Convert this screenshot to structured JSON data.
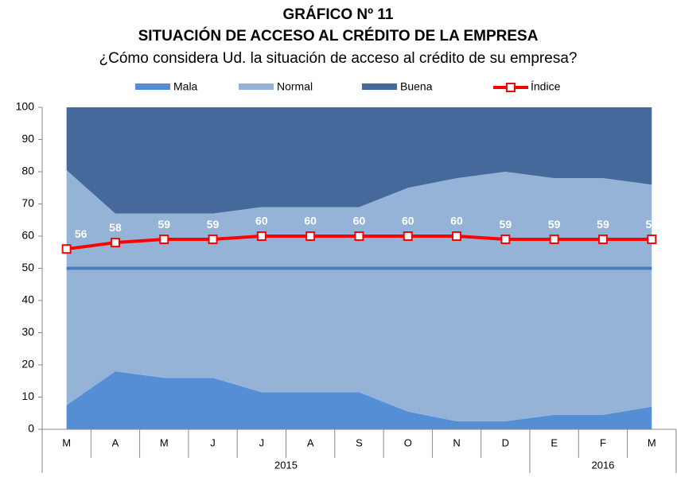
{
  "chart_data": {
    "type": "stacked-area-line",
    "title": "GRÁFICO Nº 11",
    "subtitle": "SITUACIÓN DE ACCESO AL CRÉDITO DE LA EMPRESA",
    "question": "¿Cómo considera Ud. la situación de acceso al crédito de su empresa?",
    "groups": [
      {
        "label": "2015",
        "categories": [
          "M",
          "A",
          "M",
          "J",
          "J",
          "A",
          "S",
          "O",
          "N",
          "D"
        ]
      },
      {
        "label": "2016",
        "categories": [
          "E",
          "F",
          "M"
        ]
      }
    ],
    "series": [
      {
        "name": "Mala",
        "color": "#558ed5",
        "values": [
          7.5,
          18,
          16,
          16,
          11.5,
          11.5,
          11.5,
          5.5,
          2.5,
          2.5,
          4.5,
          4.5,
          7
        ]
      },
      {
        "name": "Normal",
        "color": "#95b3d7",
        "values": [
          73,
          49,
          51,
          51,
          57.5,
          57.5,
          57.5,
          69.5,
          75.5,
          77.5,
          73.5,
          73.5,
          69
        ]
      },
      {
        "name": "Buena",
        "color": "#44699a",
        "values": [
          19.5,
          33,
          33,
          33,
          31,
          31,
          31,
          25,
          22,
          20,
          22,
          22,
          24
        ]
      }
    ],
    "line": {
      "name": "Índice",
      "color": "#ff0000",
      "values": [
        56,
        58,
        59,
        59,
        60,
        60,
        60,
        60,
        60,
        59,
        59,
        59,
        59
      ]
    },
    "reference_line": {
      "value": 50,
      "color": "#4a7ebb"
    },
    "ylim": [
      0,
      100
    ],
    "yticks": [
      0,
      10,
      20,
      30,
      40,
      50,
      60,
      70,
      80,
      90,
      100
    ]
  }
}
